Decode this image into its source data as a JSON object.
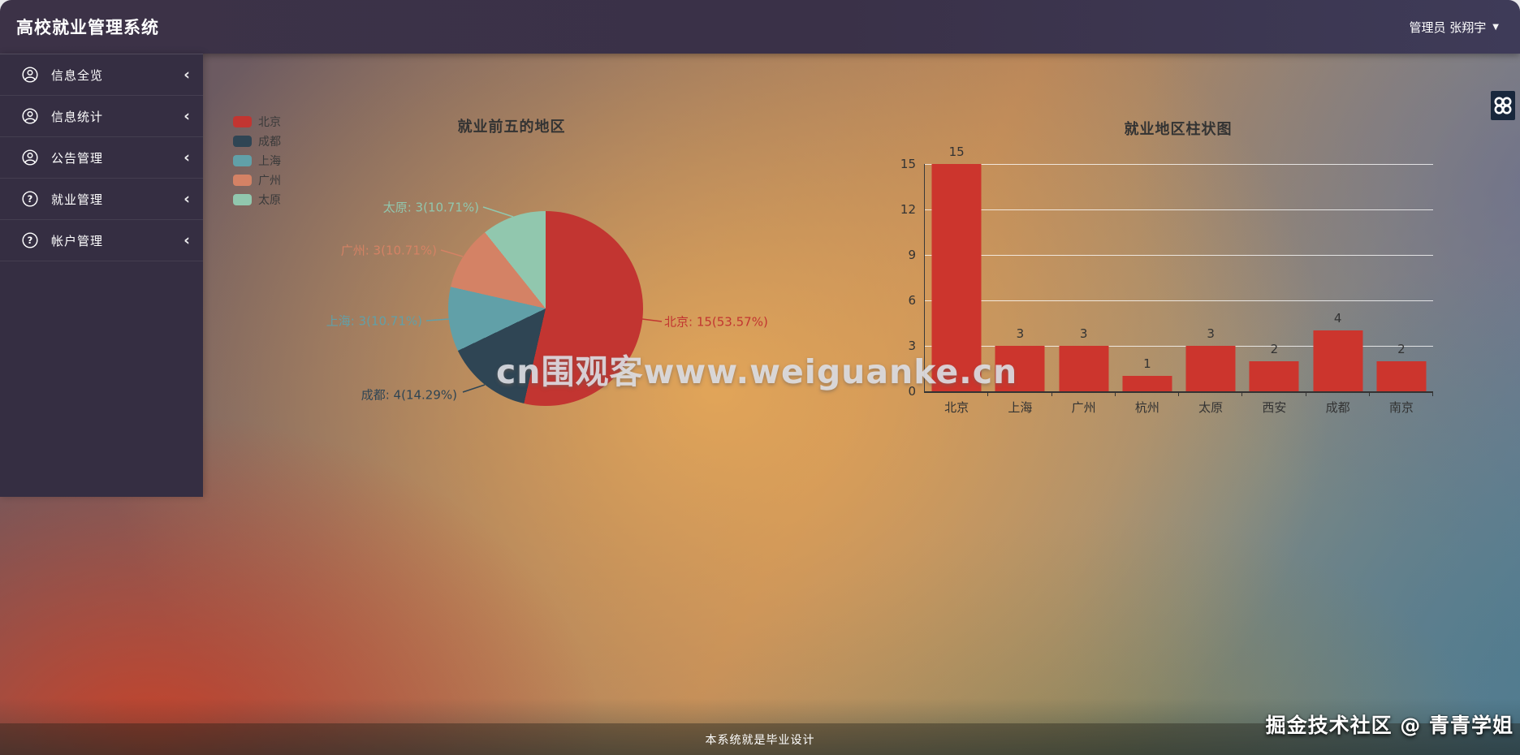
{
  "header": {
    "title": "高校就业管理系统",
    "user_label": "管理员 张翔宇",
    "caret": "▼"
  },
  "sidebar": {
    "collapse_glyph": "‹",
    "items": [
      {
        "label": "信息全览",
        "icon": "user-circle-icon"
      },
      {
        "label": "信息统计",
        "icon": "user-circle-icon"
      },
      {
        "label": "公告管理",
        "icon": "user-circle-icon"
      },
      {
        "label": "就业管理",
        "icon": "question-circle-icon"
      },
      {
        "label": "帐户管理",
        "icon": "question-circle-icon"
      }
    ]
  },
  "chart_data": [
    {
      "type": "pie",
      "title": "就业前五的地区",
      "legend_position": "left",
      "slices": [
        {
          "name": "北京",
          "value": 15,
          "percent": "53.57%",
          "color": "#c23531",
          "label": "北京: 15(53.57%)"
        },
        {
          "name": "成都",
          "value": 4,
          "percent": "14.29%",
          "color": "#2f4554",
          "label": "成都: 4(14.29%)"
        },
        {
          "name": "上海",
          "value": 3,
          "percent": "10.71%",
          "color": "#61a0a8",
          "label": "上海: 3(10.71%)"
        },
        {
          "name": "广州",
          "value": 3,
          "percent": "10.71%",
          "color": "#d48265",
          "label": "广州: 3(10.71%)"
        },
        {
          "name": "太原",
          "value": 3,
          "percent": "10.71%",
          "color": "#91c7ae",
          "label": "太原: 3(10.71%)"
        }
      ]
    },
    {
      "type": "bar",
      "title": "就业地区柱状图",
      "categories": [
        "北京",
        "上海",
        "广州",
        "杭州",
        "太原",
        "西安",
        "成都",
        "南京"
      ],
      "values": [
        15,
        3,
        3,
        1,
        3,
        2,
        4,
        2
      ],
      "bar_color": "#cc352d",
      "ylim": [
        0,
        15
      ],
      "yticks": [
        0,
        3,
        6,
        9,
        12,
        15
      ],
      "grid": true
    }
  ],
  "watermarks": {
    "center": "cn围观客www.weiguanke.cn",
    "corner": "掘金技术社区 @ 青青学姐"
  },
  "footer": {
    "text": "本系统就是毕业设计"
  }
}
